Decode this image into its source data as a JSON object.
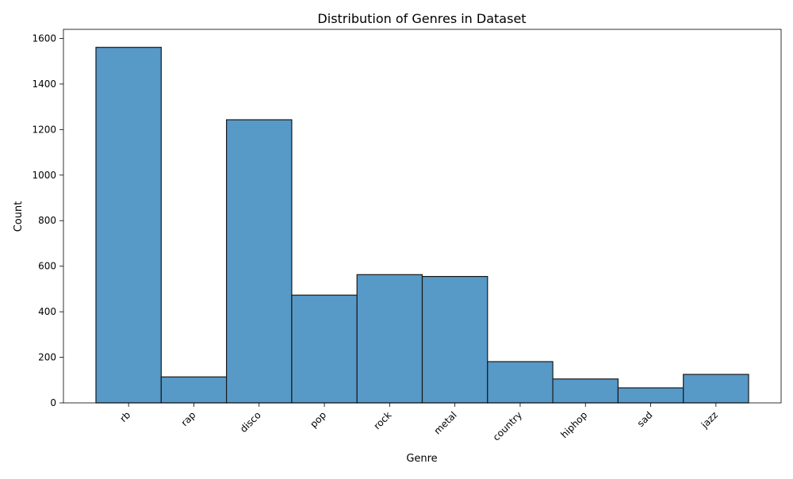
{
  "chart_data": {
    "type": "bar",
    "title": "Distribution of Genres in Dataset",
    "xlabel": "Genre",
    "ylabel": "Count",
    "categories": [
      "rb",
      "rap",
      "disco",
      "pop",
      "rock",
      "metal",
      "country",
      "hiphop",
      "sad",
      "jazz"
    ],
    "values": [
      1561,
      114,
      1243,
      473,
      563,
      555,
      181,
      105,
      66,
      125
    ],
    "ylim": [
      0,
      1640
    ],
    "yticks": [
      0,
      200,
      400,
      600,
      800,
      1000,
      1200,
      1400,
      1600
    ],
    "bar_color": "#5799c7",
    "edge_color": "#1a1a1a",
    "grid": false,
    "legend": "none"
  }
}
